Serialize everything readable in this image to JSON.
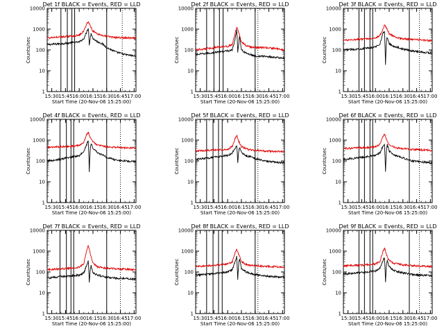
{
  "figure": {
    "x_label": "Start Time (20-Nov-06 15:25:00)",
    "y_label": "Counts/sec",
    "x_tick_labels": [
      "15:30",
      "15:45",
      "16:00",
      "16:15",
      "16:30",
      "16:45",
      "17:00"
    ],
    "y_tick_labels": [
      "1",
      "10",
      "100",
      "1000",
      "10000"
    ]
  },
  "chart_data": [
    {
      "type": "line",
      "title": "Det 1f BLACK = Events, RED = LLD",
      "xlim": [
        "15:25",
        "17:02"
      ],
      "ylim": [
        1,
        10000
      ],
      "y_scale": "log",
      "series": [
        {
          "color": "#000000",
          "x": [
            "15:25",
            "15:40",
            "15:50",
            "16:00",
            "16:05",
            "16:08",
            "16:10",
            "16:11",
            "16:12",
            "16:13",
            "16:15",
            "16:20",
            "16:25",
            "16:30",
            "16:40",
            "16:50",
            "17:02"
          ],
          "values": [
            180,
            200,
            220,
            240,
            350,
            700,
            1200,
            180,
            350,
            650,
            350,
            250,
            200,
            130,
            80,
            60,
            50
          ]
        },
        {
          "color": "#e00000",
          "x": [
            "15:25",
            "15:40",
            "15:50",
            "16:00",
            "16:05",
            "16:08",
            "16:10",
            "16:12",
            "16:15",
            "16:20",
            "16:25",
            "16:30",
            "16:40",
            "16:50",
            "17:02"
          ],
          "values": [
            380,
            420,
            460,
            500,
            800,
            1800,
            2200,
            1500,
            800,
            600,
            500,
            450,
            400,
            380,
            360
          ]
        }
      ],
      "vlines_solid": [
        "15:40",
        "15:47",
        "15:52",
        "15:55",
        "16:30"
      ],
      "vlines_dotted": [
        "16:47"
      ]
    },
    {
      "type": "line",
      "title": "Det 2f BLACK = Events, RED = LLD",
      "xlim": [
        "15:25",
        "17:02"
      ],
      "ylim": [
        1,
        10000
      ],
      "y_scale": "log",
      "series": [
        {
          "color": "#000000",
          "x": [
            "15:25",
            "15:40",
            "15:50",
            "16:00",
            "16:05",
            "16:08",
            "16:10",
            "16:11",
            "16:12",
            "16:13",
            "16:15",
            "16:20",
            "16:25",
            "16:30",
            "16:40",
            "16:50",
            "17:02"
          ],
          "values": [
            60,
            70,
            80,
            90,
            100,
            300,
            1000,
            80,
            200,
            500,
            100,
            70,
            60,
            50,
            50,
            45,
            40
          ]
        },
        {
          "color": "#e00000",
          "x": [
            "15:25",
            "15:40",
            "15:50",
            "16:00",
            "16:05",
            "16:08",
            "16:10",
            "16:12",
            "16:15",
            "16:20",
            "16:25",
            "16:30",
            "16:40",
            "16:50",
            "17:02"
          ],
          "values": [
            100,
            120,
            140,
            150,
            180,
            600,
            1200,
            700,
            250,
            160,
            140,
            130,
            130,
            120,
            100
          ]
        }
      ],
      "vlines_solid": [
        "15:37",
        "15:45",
        "15:51",
        "15:55",
        "16:30"
      ],
      "vlines_dotted": [
        "16:33"
      ]
    },
    {
      "type": "line",
      "title": "Det 3f BLACK = Events, RED = LLD",
      "xlim": [
        "15:25",
        "17:02"
      ],
      "ylim": [
        1,
        10000
      ],
      "y_scale": "log",
      "series": [
        {
          "color": "#000000",
          "x": [
            "15:25",
            "15:40",
            "15:50",
            "16:00",
            "16:05",
            "16:08",
            "16:10",
            "16:11",
            "16:12",
            "16:13",
            "16:15",
            "16:20",
            "16:25",
            "16:30",
            "16:40",
            "16:50",
            "17:02"
          ],
          "values": [
            100,
            110,
            120,
            140,
            200,
            600,
            800,
            20,
            300,
            400,
            200,
            150,
            130,
            110,
            90,
            80,
            70
          ]
        },
        {
          "color": "#e00000",
          "x": [
            "15:25",
            "15:40",
            "15:50",
            "16:00",
            "16:05",
            "16:08",
            "16:10",
            "16:12",
            "16:15",
            "16:20",
            "16:25",
            "16:30",
            "16:40",
            "16:50",
            "17:02"
          ],
          "values": [
            300,
            320,
            350,
            380,
            500,
            1000,
            1500,
            1200,
            600,
            450,
            380,
            340,
            320,
            300,
            280
          ]
        }
      ],
      "vlines_solid": [
        "15:42",
        "15:48",
        "15:54",
        "15:57",
        "16:37"
      ],
      "vlines_dotted": [
        "16:48"
      ]
    },
    {
      "type": "line",
      "title": "Det 4f BLACK = Events, RED = LLD",
      "xlim": [
        "15:25",
        "17:02"
      ],
      "ylim": [
        1,
        10000
      ],
      "y_scale": "log",
      "series": [
        {
          "color": "#000000",
          "x": [
            "15:25",
            "15:40",
            "15:50",
            "16:00",
            "16:05",
            "16:08",
            "16:10",
            "16:11",
            "16:12",
            "16:13",
            "16:15",
            "16:20",
            "16:25",
            "16:30",
            "16:40",
            "16:50",
            "17:02"
          ],
          "values": [
            100,
            120,
            150,
            180,
            300,
            600,
            1000,
            30,
            400,
            700,
            400,
            250,
            200,
            150,
            110,
            100,
            90
          ]
        },
        {
          "color": "#e00000",
          "x": [
            "15:25",
            "15:40",
            "15:50",
            "16:00",
            "16:05",
            "16:08",
            "16:10",
            "16:12",
            "16:15",
            "16:20",
            "16:25",
            "16:30",
            "16:40",
            "16:50",
            "17:02"
          ],
          "values": [
            460,
            480,
            500,
            550,
            800,
            1800,
            2400,
            1400,
            800,
            600,
            520,
            480,
            450,
            430,
            420
          ]
        }
      ],
      "vlines_solid": [
        "15:39",
        "15:46",
        "15:51",
        "15:54",
        "16:30"
      ],
      "vlines_dotted": [
        "16:45"
      ]
    },
    {
      "type": "line",
      "title": "Det 5f BLACK = Events, RED = LLD",
      "xlim": [
        "15:25",
        "17:02"
      ],
      "ylim": [
        1,
        10000
      ],
      "y_scale": "log",
      "series": [
        {
          "color": "#000000",
          "x": [
            "15:25",
            "15:40",
            "15:50",
            "16:00",
            "16:05",
            "16:08",
            "16:10",
            "16:11",
            "16:12",
            "16:13",
            "16:15",
            "16:20",
            "16:25",
            "16:30",
            "16:40",
            "16:50",
            "17:02"
          ],
          "values": [
            120,
            140,
            160,
            180,
            250,
            400,
            600,
            80,
            300,
            450,
            250,
            180,
            160,
            130,
            100,
            90,
            80
          ]
        },
        {
          "color": "#e00000",
          "x": [
            "15:25",
            "15:40",
            "15:50",
            "16:00",
            "16:05",
            "16:08",
            "16:10",
            "16:12",
            "16:15",
            "16:20",
            "16:25",
            "16:30",
            "16:40",
            "16:50",
            "17:02"
          ],
          "values": [
            300,
            320,
            340,
            360,
            500,
            1200,
            1700,
            900,
            500,
            380,
            340,
            320,
            300,
            290,
            280
          ]
        }
      ],
      "vlines_solid": [
        "15:37",
        "15:44",
        "15:50",
        "15:54",
        "16:30"
      ],
      "vlines_dotted": [
        "16:33"
      ]
    },
    {
      "type": "line",
      "title": "Det 6f BLACK = Events, RED = LLD",
      "xlim": [
        "15:25",
        "17:02"
      ],
      "ylim": [
        1,
        10000
      ],
      "y_scale": "log",
      "series": [
        {
          "color": "#000000",
          "x": [
            "15:25",
            "15:40",
            "15:50",
            "16:00",
            "16:05",
            "16:08",
            "16:10",
            "16:11",
            "16:12",
            "16:13",
            "16:15",
            "16:20",
            "16:25",
            "16:30",
            "16:40",
            "16:50",
            "17:02"
          ],
          "values": [
            120,
            140,
            160,
            180,
            250,
            500,
            700,
            30,
            400,
            600,
            300,
            200,
            170,
            140,
            100,
            90,
            80
          ]
        },
        {
          "color": "#e00000",
          "x": [
            "15:25",
            "15:40",
            "15:50",
            "16:00",
            "16:05",
            "16:08",
            "16:10",
            "16:12",
            "16:15",
            "16:20",
            "16:25",
            "16:30",
            "16:40",
            "16:50",
            "17:02"
          ],
          "values": [
            400,
            420,
            440,
            470,
            650,
            1500,
            2000,
            1100,
            600,
            460,
            420,
            390,
            360,
            340,
            320
          ]
        }
      ],
      "vlines_solid": [
        "15:42",
        "15:48",
        "15:54",
        "15:57",
        "16:37"
      ],
      "vlines_dotted": [
        "16:48"
      ]
    },
    {
      "type": "line",
      "title": "Det 7f BLACK = Events, RED = LLD",
      "xlim": [
        "15:25",
        "17:02"
      ],
      "ylim": [
        1,
        10000
      ],
      "y_scale": "log",
      "series": [
        {
          "color": "#000000",
          "x": [
            "15:25",
            "15:40",
            "15:50",
            "16:00",
            "16:05",
            "16:08",
            "16:10",
            "16:11",
            "16:12",
            "16:13",
            "16:15",
            "16:20",
            "16:25",
            "16:30",
            "16:40",
            "16:50",
            "17:02"
          ],
          "values": [
            50,
            60,
            65,
            70,
            90,
            200,
            350,
            30,
            120,
            200,
            90,
            70,
            60,
            55,
            50,
            48,
            45
          ]
        },
        {
          "color": "#e00000",
          "x": [
            "15:25",
            "15:40",
            "15:50",
            "16:00",
            "16:05",
            "16:08",
            "16:10",
            "16:12",
            "16:15",
            "16:20",
            "16:25",
            "16:30",
            "16:40",
            "16:50",
            "17:02"
          ],
          "values": [
            130,
            140,
            150,
            170,
            250,
            1100,
            1900,
            800,
            260,
            180,
            160,
            150,
            140,
            135,
            130
          ]
        }
      ],
      "vlines_solid": [
        "15:39",
        "15:46",
        "15:51",
        "15:54",
        "16:30"
      ],
      "vlines_dotted": [
        "16:45"
      ]
    },
    {
      "type": "line",
      "title": "Det 8f BLACK = Events, RED = LLD",
      "xlim": [
        "15:25",
        "17:02"
      ],
      "ylim": [
        1,
        10000
      ],
      "y_scale": "log",
      "series": [
        {
          "color": "#000000",
          "x": [
            "15:25",
            "15:40",
            "15:50",
            "16:00",
            "16:05",
            "16:08",
            "16:10",
            "16:11",
            "16:12",
            "16:13",
            "16:15",
            "16:20",
            "16:25",
            "16:30",
            "16:40",
            "16:50",
            "17:02"
          ],
          "values": [
            70,
            80,
            90,
            100,
            130,
            300,
            600,
            40,
            250,
            400,
            150,
            100,
            85,
            75,
            65,
            60,
            55
          ]
        },
        {
          "color": "#e00000",
          "x": [
            "15:25",
            "15:40",
            "15:50",
            "16:00",
            "16:05",
            "16:08",
            "16:10",
            "16:12",
            "16:15",
            "16:20",
            "16:25",
            "16:30",
            "16:40",
            "16:50",
            "17:02"
          ],
          "values": [
            180,
            200,
            220,
            240,
            300,
            800,
            1200,
            700,
            320,
            230,
            210,
            200,
            190,
            180,
            170
          ]
        }
      ],
      "vlines_solid": [
        "15:37",
        "15:44",
        "15:50",
        "15:54",
        "16:30"
      ],
      "vlines_dotted": [
        "16:33"
      ]
    },
    {
      "type": "line",
      "title": "Det 9f BLACK = Events, RED = LLD",
      "xlim": [
        "15:25",
        "17:02"
      ],
      "ylim": [
        1,
        10000
      ],
      "y_scale": "log",
      "series": [
        {
          "color": "#000000",
          "x": [
            "15:25",
            "15:40",
            "15:50",
            "16:00",
            "16:05",
            "16:08",
            "16:10",
            "16:11",
            "16:12",
            "16:13",
            "16:15",
            "16:20",
            "16:25",
            "16:30",
            "16:40",
            "16:50",
            "17:02"
          ],
          "values": [
            80,
            90,
            100,
            110,
            160,
            350,
            500,
            30,
            250,
            350,
            180,
            120,
            100,
            90,
            75,
            70,
            65
          ]
        },
        {
          "color": "#e00000",
          "x": [
            "15:25",
            "15:40",
            "15:50",
            "16:00",
            "16:05",
            "16:08",
            "16:10",
            "16:12",
            "16:15",
            "16:20",
            "16:25",
            "16:30",
            "16:40",
            "16:50",
            "17:02"
          ],
          "values": [
            200,
            210,
            220,
            240,
            320,
            900,
            1400,
            700,
            350,
            260,
            240,
            220,
            200,
            190,
            180
          ]
        }
      ],
      "vlines_solid": [
        "15:42",
        "15:48",
        "15:54",
        "15:57",
        "16:37"
      ],
      "vlines_dotted": [
        "16:48"
      ]
    }
  ]
}
